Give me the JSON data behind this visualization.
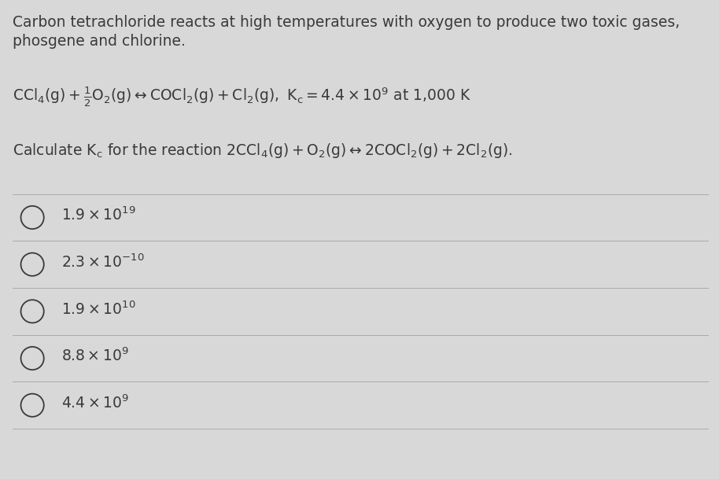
{
  "background_color": "#d8d8d8",
  "text_color": "#3a3a3a",
  "line_color": "#aaaaaa",
  "intro_line1": "Carbon tetrachloride reacts at high temperatures with oxygen to produce two toxic gases,",
  "intro_line2": "phosgene and chlorine.",
  "answers": [
    {
      "label": "$1.9 \\times 10^{19}$"
    },
    {
      "label": "$2.3 \\times 10^{-10}$"
    },
    {
      "label": "$1.9 \\times 10^{10}$"
    },
    {
      "label": "$8.8 \\times 10^{9}$"
    },
    {
      "label": "$4.4 \\times 10^{9}$"
    }
  ],
  "figsize": [
    9.14,
    6.09
  ],
  "dpi": 100,
  "fs_main": 13.5,
  "fs_math": 13.5
}
